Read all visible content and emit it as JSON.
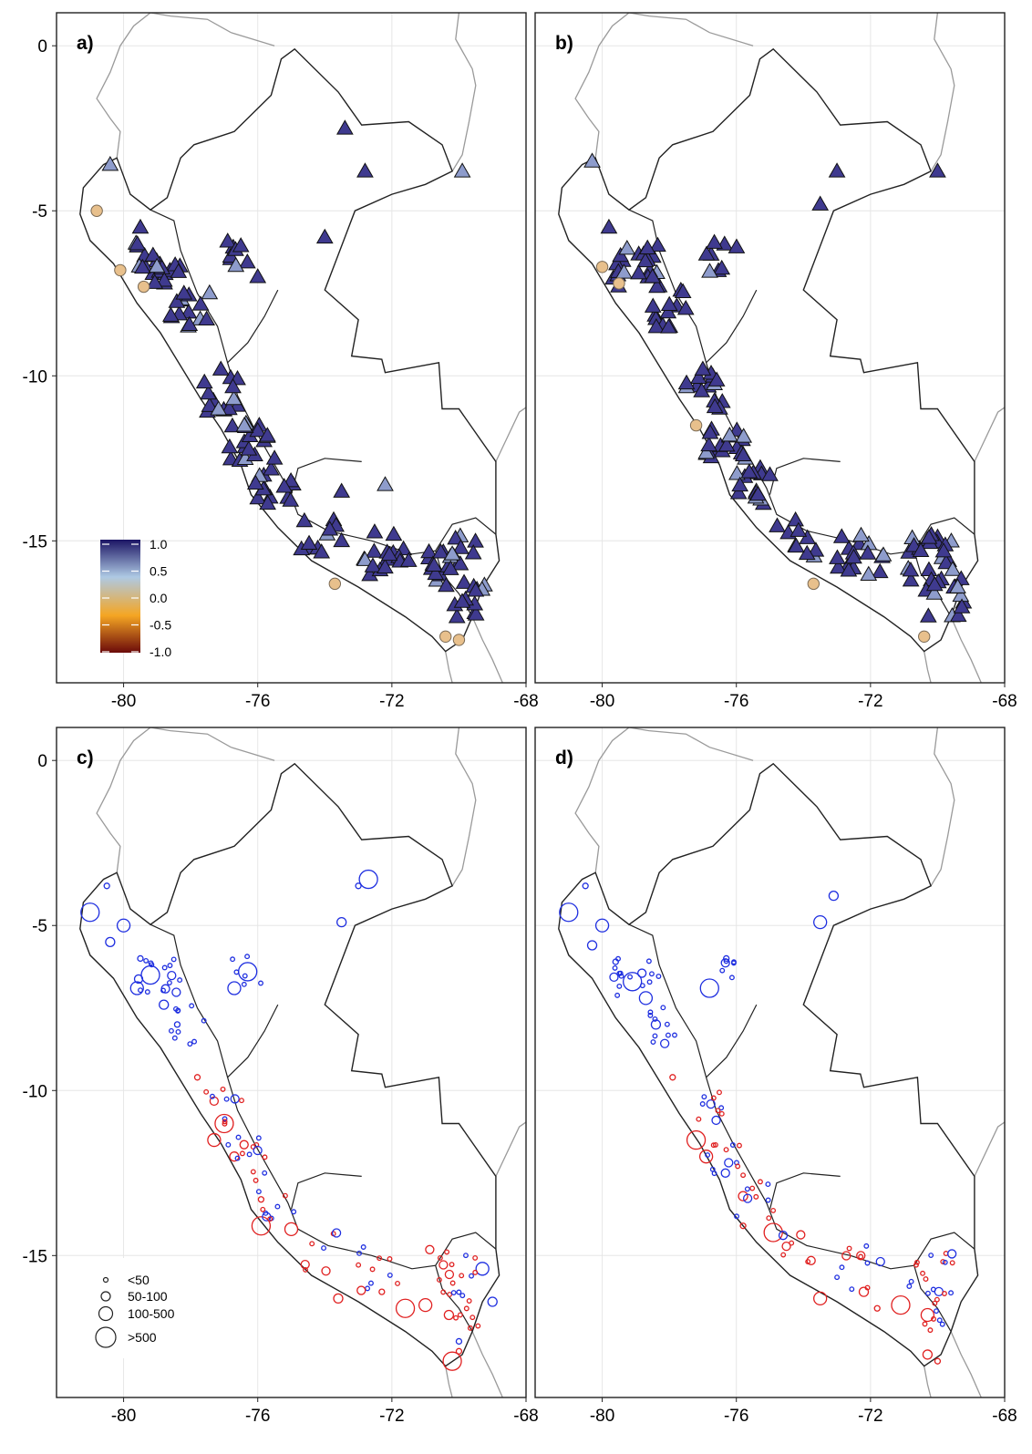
{
  "figure": {
    "panels": [
      {
        "label": "a)",
        "kind": "correlation"
      },
      {
        "label": "b)",
        "kind": "correlation"
      },
      {
        "label": "c)",
        "kind": "error"
      },
      {
        "label": "d)",
        "kind": "error"
      }
    ],
    "x_ticks": [
      "-80",
      "-76",
      "-72",
      "-68"
    ],
    "y_ticks": [
      "0",
      "-5",
      "-10",
      "-15"
    ]
  },
  "colorbar": {
    "labels": [
      "1.0",
      "0.5",
      "0.0",
      "-0.5",
      "-1.0"
    ],
    "colors": [
      "#1b1464",
      "#aec9e4",
      "#f5a623",
      "#6b0a0a"
    ]
  },
  "size_legend": {
    "labels": [
      "<50",
      "50-100",
      "100-500",
      ">500"
    ]
  },
  "colors": {
    "high": "#3f3a8f",
    "mid": "#8e9ccc",
    "low_circle": "#e8c08c",
    "positive_error": "#e02020",
    "negative_error": "#1f2fe0"
  },
  "chart_data": [
    {
      "type": "scatter",
      "panel": "a)",
      "xlim": [
        -82,
        -68
      ],
      "ylim": [
        -19.3,
        1
      ],
      "x_ticks": [
        -80,
        -76,
        -72,
        -68
      ],
      "y_ticks": [
        0,
        -5,
        -10,
        -15
      ],
      "grid": true,
      "legend": "colorbar bottom-left, range -1.0 to 1.0",
      "triangle_points_sample": [
        [
          -80.4,
          -3.6
        ],
        [
          -79.5,
          -5.5
        ],
        [
          -78.2,
          -7.5
        ],
        [
          -77.1,
          -9.8
        ],
        [
          -76.4,
          -11.5
        ],
        [
          -75.5,
          -12.5
        ],
        [
          -73.5,
          -15.0
        ],
        [
          -71.5,
          -15.6
        ],
        [
          -70.2,
          -15.4
        ],
        [
          -69.5,
          -16.5
        ],
        [
          -73.4,
          -2.5
        ],
        [
          -72.8,
          -3.8
        ],
        [
          -69.9,
          -3.8
        ],
        [
          -74.0,
          -5.8
        ],
        [
          -76.0,
          -7.0
        ],
        [
          -73.5,
          -13.5
        ],
        [
          -72.2,
          -13.3
        ]
      ],
      "circle_points_sample": [
        [
          -80.8,
          -5.0
        ],
        [
          -80.1,
          -6.8
        ],
        [
          -79.4,
          -7.3
        ],
        [
          -73.7,
          -16.3
        ],
        [
          -70.4,
          -17.9
        ],
        [
          -70.0,
          -18.0
        ]
      ]
    },
    {
      "type": "scatter",
      "panel": "b)",
      "xlim": [
        -82,
        -68
      ],
      "ylim": [
        -19.3,
        1
      ],
      "x_ticks": [
        -80,
        -76,
        -72,
        -68
      ],
      "y_ticks": [
        0,
        -5,
        -10,
        -15
      ],
      "grid": true,
      "triangle_points_sample": [
        [
          -80.3,
          -3.5
        ],
        [
          -79.8,
          -5.5
        ],
        [
          -78.5,
          -7.0
        ],
        [
          -77.0,
          -9.8
        ],
        [
          -76.2,
          -11.8
        ],
        [
          -75.0,
          -13.0
        ],
        [
          -72.5,
          -15.5
        ],
        [
          -70.5,
          -15.3
        ],
        [
          -69.4,
          -16.4
        ],
        [
          -73.5,
          -4.8
        ],
        [
          -73.0,
          -3.8
        ],
        [
          -70.0,
          -3.8
        ]
      ],
      "circle_points_sample": [
        [
          -80.0,
          -6.7
        ],
        [
          -79.5,
          -7.2
        ],
        [
          -77.2,
          -11.5
        ],
        [
          -73.7,
          -16.3
        ],
        [
          -70.4,
          -17.9
        ]
      ]
    },
    {
      "type": "scatter",
      "panel": "c)",
      "xlim": [
        -82,
        -68
      ],
      "ylim": [
        -19.3,
        1
      ],
      "x_ticks": [
        -80,
        -76,
        -72,
        -68
      ],
      "y_ticks": [
        0,
        -5,
        -10,
        -15
      ],
      "grid": true,
      "legend": "size legend bottom-left: <50, 50-100, 100-500, >500",
      "series": [
        {
          "color": "blue",
          "points_sample": [
            [
              -80.5,
              -3.8
            ],
            [
              -81.0,
              -4.6
            ],
            [
              -80.0,
              -5.0
            ],
            [
              -80.4,
              -5.5
            ],
            [
              -79.5,
              -6.0
            ],
            [
              -79.2,
              -6.5
            ],
            [
              -79.6,
              -6.9
            ],
            [
              -78.8,
              -7.4
            ],
            [
              -78.4,
              -8.0
            ],
            [
              -76.3,
              -6.4
            ],
            [
              -76.7,
              -6.9
            ],
            [
              -73.5,
              -4.9
            ],
            [
              -73.0,
              -3.8
            ],
            [
              -72.7,
              -3.6
            ],
            [
              -69.3,
              -15.4
            ],
            [
              -69.0,
              -16.4
            ],
            [
              -70.0,
              -17.6
            ]
          ]
        },
        {
          "color": "red",
          "points_sample": [
            [
              -77.8,
              -9.6
            ],
            [
              -77.0,
              -11.0
            ],
            [
              -77.3,
              -11.5
            ],
            [
              -76.7,
              -12.0
            ],
            [
              -75.9,
              -13.3
            ],
            [
              -75.9,
              -14.1
            ],
            [
              -75.0,
              -14.2
            ],
            [
              -73.6,
              -16.3
            ],
            [
              -72.3,
              -16.1
            ],
            [
              -71.6,
              -16.6
            ],
            [
              -71.0,
              -16.5
            ],
            [
              -70.3,
              -16.8
            ],
            [
              -70.0,
              -17.9
            ],
            [
              -70.2,
              -18.2
            ]
          ]
        }
      ]
    },
    {
      "type": "scatter",
      "panel": "d)",
      "xlim": [
        -82,
        -68
      ],
      "ylim": [
        -19.3,
        1
      ],
      "x_ticks": [
        -80,
        -76,
        -72,
        -68
      ],
      "y_ticks": [
        0,
        -5,
        -10,
        -15
      ],
      "grid": true,
      "series": [
        {
          "color": "blue",
          "points_sample": [
            [
              -80.5,
              -3.8
            ],
            [
              -81.0,
              -4.6
            ],
            [
              -80.0,
              -5.0
            ],
            [
              -80.3,
              -5.6
            ],
            [
              -79.6,
              -6.1
            ],
            [
              -79.1,
              -6.7
            ],
            [
              -78.7,
              -7.2
            ],
            [
              -78.4,
              -8.0
            ],
            [
              -76.3,
              -6.0
            ],
            [
              -76.8,
              -6.9
            ],
            [
              -73.5,
              -4.9
            ],
            [
              -73.1,
              -4.1
            ]
          ]
        },
        {
          "color": "red",
          "points_sample": [
            [
              -77.9,
              -9.6
            ],
            [
              -77.2,
              -11.5
            ],
            [
              -76.9,
              -12.0
            ],
            [
              -75.8,
              -13.2
            ],
            [
              -75.8,
              -14.1
            ],
            [
              -74.9,
              -14.3
            ],
            [
              -73.5,
              -16.3
            ],
            [
              -72.2,
              -16.1
            ],
            [
              -71.8,
              -16.6
            ],
            [
              -71.1,
              -16.5
            ],
            [
              -70.3,
              -16.8
            ],
            [
              -70.3,
              -18.0
            ],
            [
              -70.0,
              -18.2
            ]
          ]
        }
      ]
    }
  ]
}
